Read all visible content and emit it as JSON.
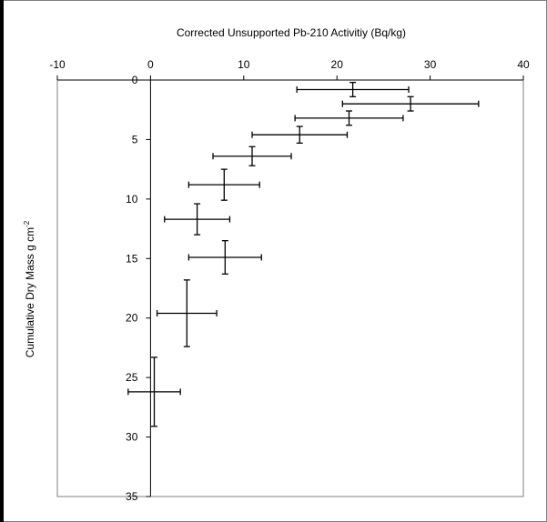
{
  "chart_data": {
    "type": "scatter",
    "title": "",
    "xlabel": "Corrected Unsupported Pb-210 Activitiy (Bq/kg)",
    "ylabel_main": "Cumulative Dry Mass g cm",
    "ylabel_sup": "-2",
    "xlim": [
      -10,
      40
    ],
    "ylim": [
      0,
      35
    ],
    "y_inverted": true,
    "x_axis_position": "top",
    "grid": false,
    "legend": "none",
    "xticks": [
      -10,
      0,
      10,
      20,
      30,
      40
    ],
    "yticks": [
      0,
      5,
      10,
      15,
      20,
      25,
      30,
      35
    ],
    "points": [
      {
        "x": 21.7,
        "y": 0.8,
        "x_err": 6.0,
        "y_err": 0.6
      },
      {
        "x": 27.9,
        "y": 2.0,
        "x_err": 7.3,
        "y_err": 0.6
      },
      {
        "x": 21.3,
        "y": 3.2,
        "x_err": 5.8,
        "y_err": 0.6
      },
      {
        "x": 16.0,
        "y": 4.6,
        "x_err": 5.1,
        "y_err": 0.7
      },
      {
        "x": 10.9,
        "y": 6.4,
        "x_err": 4.2,
        "y_err": 0.8
      },
      {
        "x": 7.9,
        "y": 8.8,
        "x_err": 3.8,
        "y_err": 1.3
      },
      {
        "x": 5.0,
        "y": 11.7,
        "x_err": 3.5,
        "y_err": 1.3
      },
      {
        "x": 8.0,
        "y": 14.9,
        "x_err": 3.9,
        "y_err": 1.4
      },
      {
        "x": 3.9,
        "y": 19.6,
        "x_err": 3.2,
        "y_err": 2.8
      },
      {
        "x": 0.4,
        "y": 26.2,
        "x_err": 2.8,
        "y_err": 2.9
      }
    ]
  }
}
